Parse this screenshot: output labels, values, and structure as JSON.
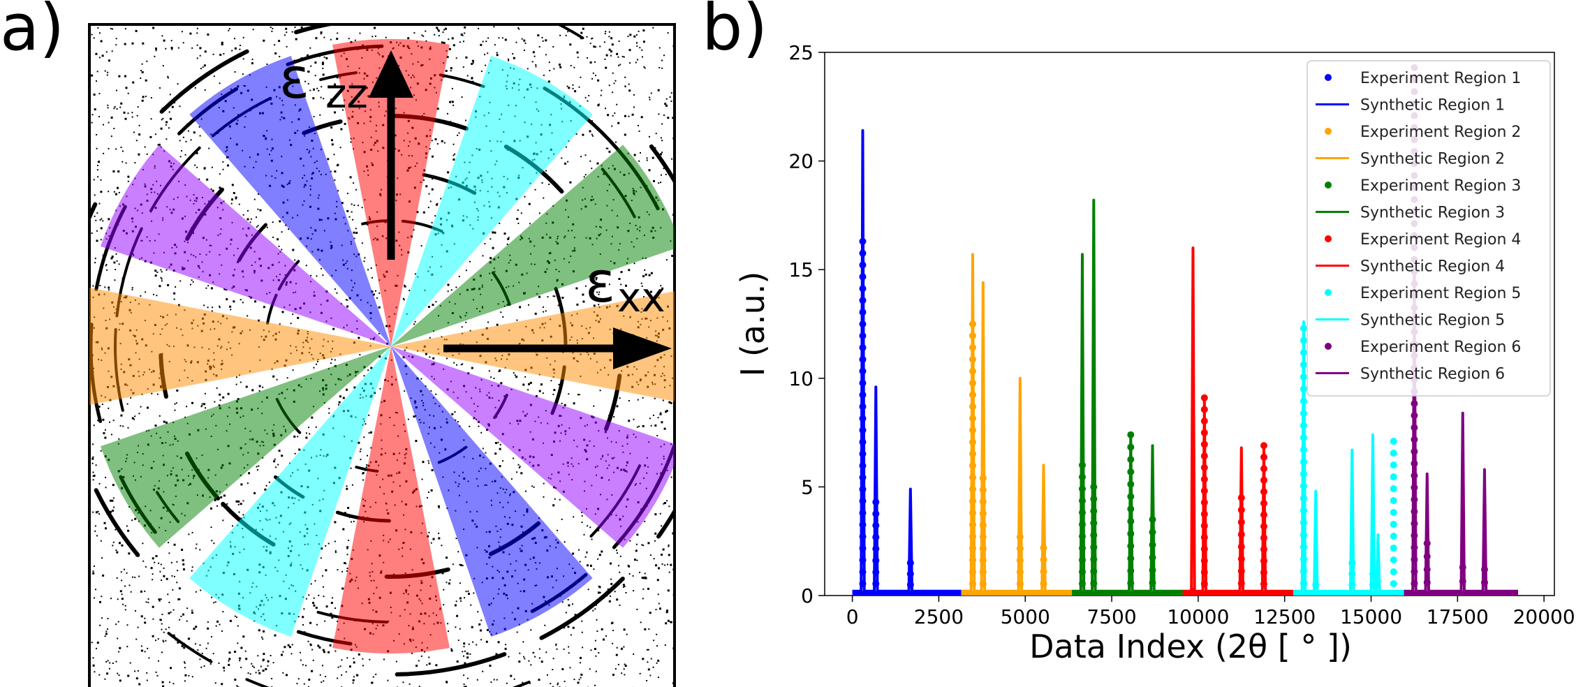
{
  "panels": {
    "a": "a)",
    "b": "b)"
  },
  "panel_a": {
    "strain_zz_symbol": "ε",
    "strain_zz_subscript": "zz",
    "strain_xx_symbol": "ε",
    "strain_xx_subscript": "xx",
    "sector_colors": [
      "#ff0000",
      "#00ffff",
      "#008000",
      "#ff8c00",
      "#9400ff",
      "#0000ff"
    ],
    "colors": {
      "region1": "#0000ff",
      "region2": "#ffa500",
      "region3": "#008000",
      "region4": "#ff0000",
      "region5": "#00ffff",
      "region6": "#800080"
    }
  },
  "chart_data": {
    "type": "line",
    "title": "",
    "xlabel": "Data Index (2θ [ ° ])",
    "ylabel": "I (a.u.)",
    "xlim": [
      -800,
      20300
    ],
    "ylim": [
      0,
      25
    ],
    "xticks": [
      0,
      2500,
      5000,
      7500,
      10000,
      12500,
      15000,
      17500,
      20000
    ],
    "xtick_labels": [
      "0",
      "2500",
      "5000",
      "7500",
      "10000",
      "12500",
      "15000",
      "17500",
      "20000"
    ],
    "yticks": [
      0,
      5,
      10,
      15,
      20,
      25
    ],
    "ytick_labels": [
      "0",
      "5",
      "10",
      "15",
      "20",
      "25"
    ],
    "legend_position": "top-right",
    "series": [
      {
        "name": "Region 1",
        "experiment_label": "Experiment Region 1",
        "synthetic_label": "Synthetic Region 1",
        "color": "#0000ff",
        "x_range": [
          0,
          3150
        ],
        "baseline": 0.2,
        "synthetic_peaks": [
          [
            300,
            21.4
          ],
          [
            680,
            9.6
          ],
          [
            1680,
            4.9
          ]
        ],
        "experiment_peaks": [
          [
            300,
            16.3
          ],
          [
            680,
            4.3
          ],
          [
            1680,
            1.5
          ]
        ]
      },
      {
        "name": "Region 2",
        "experiment_label": "Experiment Region 2",
        "synthetic_label": "Synthetic Region 2",
        "color": "#ffa500",
        "x_range": [
          3150,
          6350
        ],
        "baseline": 0.2,
        "synthetic_peaks": [
          [
            3480,
            15.7
          ],
          [
            3780,
            14.4
          ],
          [
            4850,
            10.0
          ],
          [
            5530,
            6.0
          ]
        ],
        "experiment_peaks": [
          [
            3480,
            12.5
          ],
          [
            3780,
            5.4
          ],
          [
            4850,
            2.7
          ],
          [
            5530,
            2.2
          ]
        ]
      },
      {
        "name": "Region 3",
        "experiment_label": "Experiment Region 3",
        "synthetic_label": "Synthetic Region 3",
        "color": "#008000",
        "x_range": [
          6350,
          9550
        ],
        "baseline": 0.2,
        "synthetic_peaks": [
          [
            6650,
            15.7
          ],
          [
            6980,
            18.2
          ],
          [
            8050,
            7.4
          ],
          [
            8680,
            6.9
          ]
        ],
        "experiment_peaks": [
          [
            6650,
            6.0
          ],
          [
            6980,
            5.0
          ],
          [
            8050,
            7.4
          ],
          [
            8680,
            3.5
          ]
        ]
      },
      {
        "name": "Region 4",
        "experiment_label": "Experiment Region 4",
        "synthetic_label": "Synthetic Region 4",
        "color": "#ff0000",
        "x_range": [
          9550,
          12750
        ],
        "baseline": 0.2,
        "synthetic_peaks": [
          [
            9850,
            16.0
          ],
          [
            10180,
            9.0
          ],
          [
            11250,
            6.8
          ],
          [
            11900,
            6.8
          ]
        ],
        "experiment_peaks": [
          [
            9850,
            0.2
          ],
          [
            10180,
            9.1
          ],
          [
            11250,
            4.5
          ],
          [
            11900,
            6.9
          ]
        ]
      },
      {
        "name": "Region 5",
        "experiment_label": "Experiment Region 5",
        "synthetic_label": "Synthetic Region 5",
        "color": "#00ffff",
        "x_range": [
          12750,
          15950
        ],
        "baseline": 0.2,
        "synthetic_peaks": [
          [
            13050,
            12.6
          ],
          [
            13400,
            4.8
          ],
          [
            14450,
            6.7
          ],
          [
            15050,
            7.4
          ],
          [
            15200,
            2.8
          ]
        ],
        "experiment_peaks": [
          [
            13050,
            12.3
          ],
          [
            13400,
            0.5
          ],
          [
            14450,
            1.5
          ],
          [
            15050,
            1.0
          ],
          [
            15650,
            7.1
          ]
        ]
      },
      {
        "name": "Region 6",
        "experiment_label": "Experiment Region 6",
        "synthetic_label": "Synthetic Region 6",
        "color": "#800080",
        "x_range": [
          15950,
          19250
        ],
        "baseline": 0.2,
        "synthetic_peaks": [
          [
            16250,
            15.0
          ],
          [
            16620,
            5.6
          ],
          [
            17650,
            8.4
          ],
          [
            18280,
            5.8
          ]
        ],
        "experiment_peaks": [
          [
            16250,
            24.3
          ],
          [
            16620,
            2.4
          ],
          [
            17650,
            1.3
          ],
          [
            18280,
            1.2
          ]
        ]
      }
    ]
  }
}
